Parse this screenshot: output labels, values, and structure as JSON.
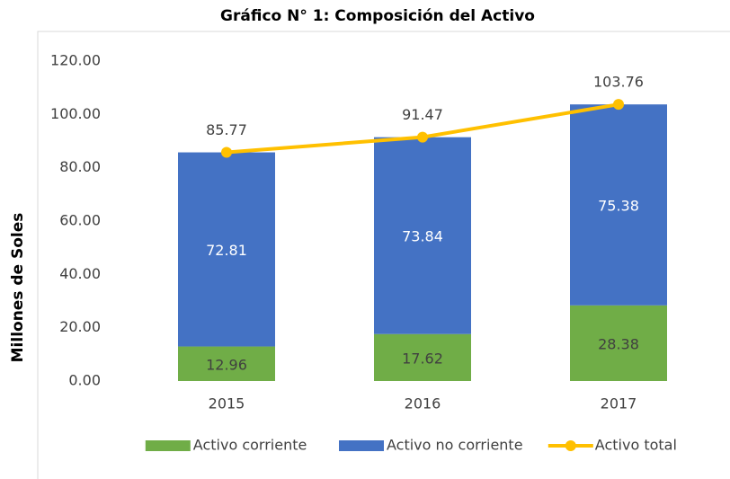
{
  "chart_data": {
    "type": "bar",
    "stacked": true,
    "title": "Gráfico N° 1: Composición del Activo",
    "y_label": "Millones de Soles",
    "categories": [
      "2015",
      "2016",
      "2017"
    ],
    "series": [
      {
        "name": "Activo corriente",
        "color": "#70ad47",
        "kind": "bar",
        "values": [
          12.96,
          17.62,
          28.38
        ]
      },
      {
        "name": "Activo no corriente",
        "color": "#4472c4",
        "kind": "bar",
        "values": [
          72.81,
          73.84,
          75.38
        ]
      },
      {
        "name": "Activo total",
        "color": "#ffc000",
        "kind": "line",
        "values": [
          85.77,
          91.47,
          103.76
        ]
      }
    ],
    "ylim": [
      0,
      120
    ],
    "yticks": [
      {
        "value": 0,
        "label": "0.00"
      },
      {
        "value": 20,
        "label": "20.00"
      },
      {
        "value": 40,
        "label": "40.00"
      },
      {
        "value": 60,
        "label": "60.00"
      },
      {
        "value": 80,
        "label": "80.00"
      },
      {
        "value": 100,
        "label": "100.00"
      },
      {
        "value": 120,
        "label": "120.00"
      }
    ],
    "legend": "bottom",
    "grid": false
  }
}
